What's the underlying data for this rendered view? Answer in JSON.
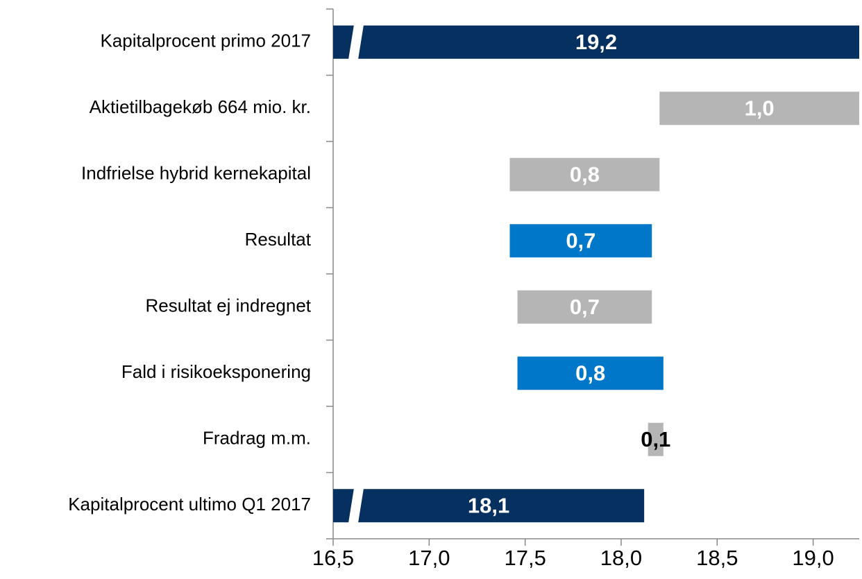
{
  "chart_data": {
    "type": "waterfall",
    "orientation": "horizontal",
    "categories": [
      "Kapitalprocent primo 2017",
      "Aktietilbagekøb 664 mio. kr.",
      "Indfrielse hybrid kernekapital",
      "Resultat",
      "Resultat ej indregnet",
      "Fald i risikoeksponering",
      "Fradrag m.m.",
      "Kapitalprocent ultimo Q1 2017"
    ],
    "kinds": [
      "total",
      "decrease",
      "decrease",
      "increase",
      "decrease",
      "increase",
      "decrease",
      "total"
    ],
    "values": [
      19.24,
      1.04,
      0.78,
      0.74,
      0.7,
      0.76,
      0.08,
      18.12
    ],
    "value_labels": [
      "19,2",
      "1,0",
      "0,8",
      "0,7",
      "0,7",
      "0,8",
      "0,1",
      "18,1"
    ],
    "colors": {
      "total": "#06305f",
      "decrease": "#b5b5b5",
      "increase": "#0077c8"
    },
    "xlim": [
      16.5,
      19.24
    ],
    "xticks": [
      {
        "value": 16.5,
        "label": "16,5"
      },
      {
        "value": 17.0,
        "label": "17,0"
      },
      {
        "value": 17.5,
        "label": "17,5"
      },
      {
        "value": 18.0,
        "label": "18,0"
      },
      {
        "value": 18.5,
        "label": "18,5"
      },
      {
        "value": 19.0,
        "label": "19,0"
      }
    ]
  }
}
